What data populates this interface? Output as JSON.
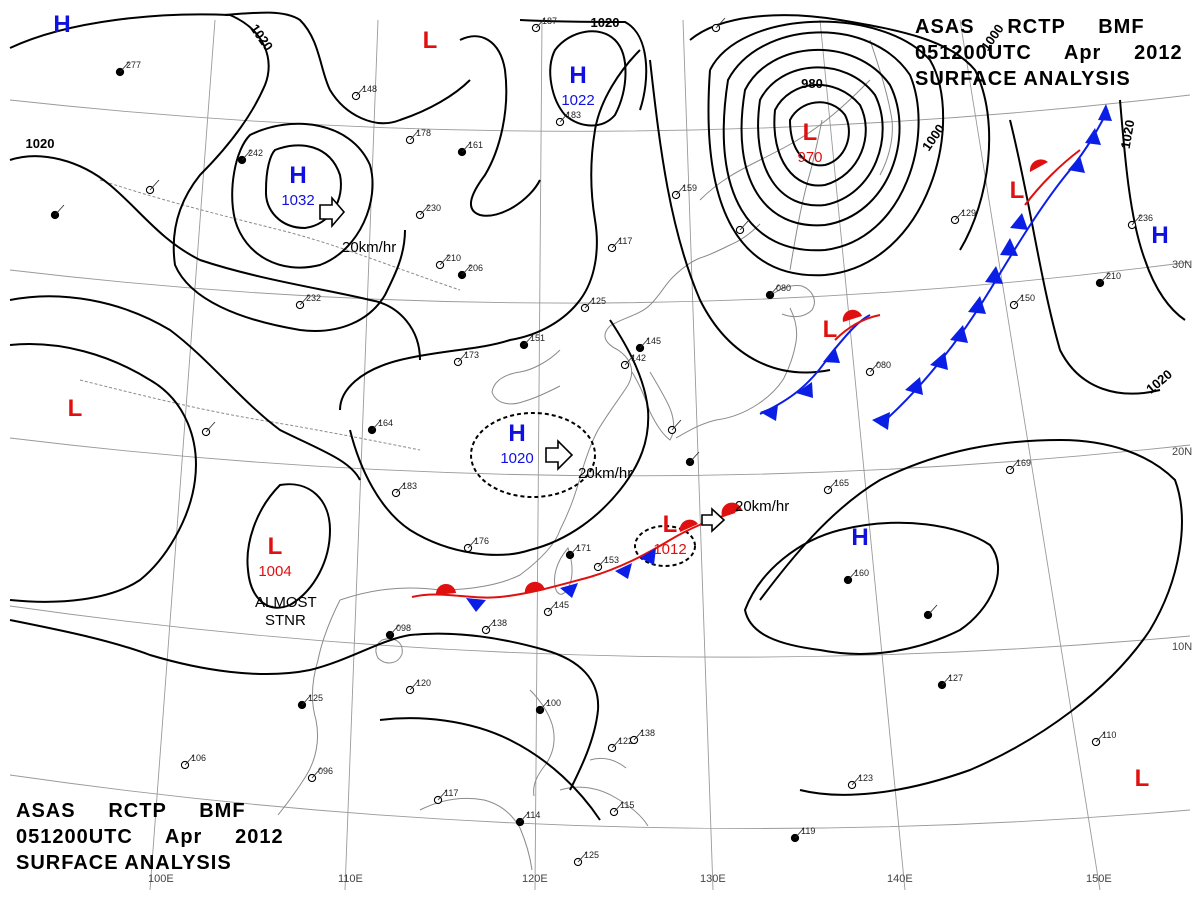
{
  "header": {
    "line1": "ASAS     RCTP     BMF",
    "line2": "051200UTC     Apr     2012",
    "line3": "SURFACE ANALYSIS"
  },
  "colors": {
    "high": "#1010e0",
    "low": "#e01010",
    "cold_front": "#0a1ee6",
    "warm_front": "#e61010",
    "land": "#8a8a8a",
    "isobar": "#000000"
  },
  "lat_labels": [
    "30N",
    "20N",
    "10N"
  ],
  "lon_labels": [
    "100E",
    "110E",
    "120E",
    "130E",
    "140E",
    "150E"
  ],
  "pressure_centers": [
    {
      "type": "H",
      "label": "H",
      "value": "",
      "color": "#1010e0"
    },
    {
      "type": "L",
      "label": "L",
      "value": "",
      "color": "#e01010"
    },
    {
      "type": "H",
      "label": "H",
      "value": "1022",
      "color": "#1010e0"
    },
    {
      "type": "H",
      "label": "H",
      "value": "1032",
      "color": "#1010e0"
    },
    {
      "type": "L",
      "label": "L",
      "value": "970",
      "color": "#e01010"
    },
    {
      "type": "L",
      "label": "L",
      "value": "",
      "color": "#e01010"
    },
    {
      "type": "L",
      "label": "L",
      "value": "",
      "color": "#e01010"
    },
    {
      "type": "H",
      "label": "H",
      "value": "",
      "color": "#1010e0"
    },
    {
      "type": "L",
      "label": "L",
      "value": "",
      "color": "#e01010"
    },
    {
      "type": "H",
      "label": "H",
      "value": "1020",
      "color": "#1010e0"
    },
    {
      "type": "L",
      "label": "L",
      "value": "1004",
      "color": "#e01010"
    },
    {
      "type": "L",
      "label": "L",
      "value": "1012",
      "color": "#e01010"
    },
    {
      "type": "H",
      "label": "H",
      "value": "",
      "color": "#1010e0"
    },
    {
      "type": "L",
      "label": "L",
      "value": "",
      "color": "#e01010"
    }
  ],
  "isobar_labels": [
    "1020",
    "1020",
    "1020",
    "1000",
    "980",
    "1000",
    "1020",
    "1020"
  ],
  "motion_labels": [
    "20km/hr",
    "20km/hr",
    "20km/hr"
  ],
  "annotations": {
    "stationary_line1": "ALMOST",
    "stationary_line2": "STNR"
  },
  "station_values": [
    "277",
    "148",
    "178",
    "161",
    "187",
    "183",
    "242",
    "230",
    "210",
    "206",
    "232",
    "173",
    "151",
    "117",
    "125",
    "145",
    "142",
    "159",
    "080",
    "129",
    "236",
    "210",
    "150",
    "080",
    "164",
    "183",
    "176",
    "171",
    "153",
    "145",
    "098",
    "138",
    "120",
    "125",
    "096",
    "117",
    "100",
    "122",
    "138",
    "160",
    "169",
    "165",
    "127",
    "123",
    "110",
    "119",
    "125",
    "115",
    "114",
    "106"
  ]
}
